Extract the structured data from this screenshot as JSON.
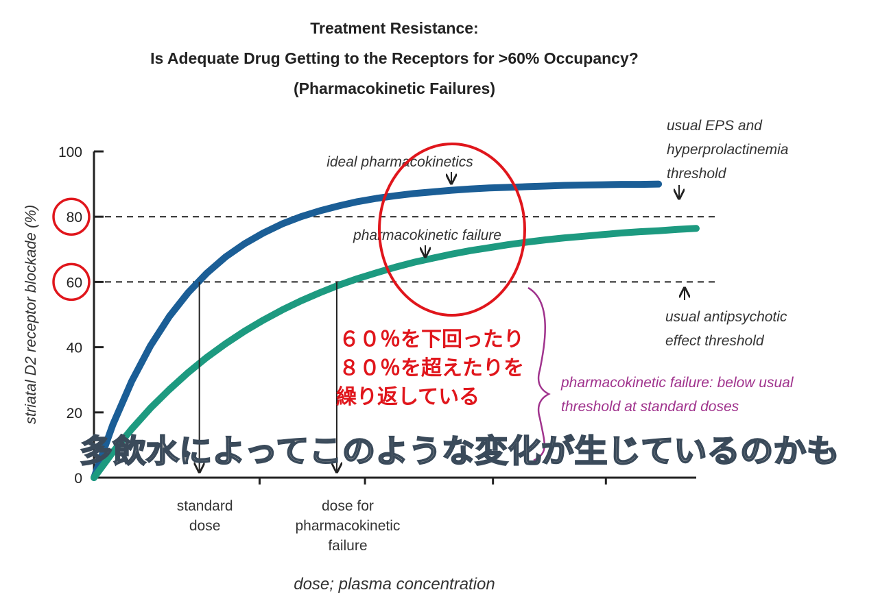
{
  "chart_data": {
    "type": "line",
    "title_lines": [
      "Treatment Resistance:",
      "Is Adequate Drug Getting to the Receptors for >60% Occupancy?",
      "(Pharmacokinetic Failures)"
    ],
    "xlabel": "dose; plasma concentration",
    "ylabel": "striatal D2 receptor blockade (%)",
    "ylim": [
      0,
      100
    ],
    "y_ticks": [
      "0",
      "20",
      "40",
      "60",
      "80",
      "100"
    ],
    "x_tick_labels": [
      {
        "name": "standard-dose",
        "lines": [
          "standard",
          "dose"
        ]
      },
      {
        "name": "dose-for-pk-failure",
        "lines": [
          "dose for",
          "pharmacokinetic",
          "failure"
        ]
      }
    ],
    "thresholds": [
      {
        "name": "eps-threshold",
        "y": 80,
        "label_lines": [
          "usual EPS and",
          "hyperprolactinemia",
          "threshold"
        ]
      },
      {
        "name": "antipsychotic-threshold",
        "y": 60,
        "label_lines": [
          "usual antipsychotic",
          "effect threshold"
        ]
      }
    ],
    "series": [
      {
        "name": "ideal pharmacokinetics",
        "color": "#1b5e96",
        "x": [
          0,
          0.5,
          1,
          1.5,
          2,
          2.5,
          3,
          3.5,
          4,
          4.5,
          5,
          5.5,
          6,
          6.5,
          7,
          7.5,
          8,
          8.5,
          9,
          9.5,
          10,
          10.5,
          11,
          11.5,
          12,
          12.5,
          13,
          13.5,
          14,
          14.5,
          15
        ],
        "values": [
          0,
          16.2,
          29.5,
          40.4,
          49.4,
          56.7,
          62.7,
          67.7,
          71.7,
          75.0,
          77.8,
          80.0,
          81.8,
          83.3,
          84.6,
          85.6,
          86.4,
          87.1,
          87.6,
          88.1,
          88.5,
          88.8,
          89.0,
          89.2,
          89.4,
          89.6,
          89.7,
          89.8,
          89.9,
          89.9,
          90.0
        ]
      },
      {
        "name": "pharmacokinetic failure",
        "color": "#1d9a80",
        "x": [
          0,
          0.5,
          1,
          1.5,
          2,
          2.5,
          3,
          3.5,
          4,
          4.5,
          5,
          5.5,
          6,
          6.5,
          7,
          7.5,
          8,
          8.5,
          9,
          9.5,
          10,
          10.5,
          11,
          11.5,
          12,
          12.5,
          13,
          13.5,
          14,
          14.5,
          15,
          15.5,
          16
        ],
        "values": [
          0,
          7.8,
          14.9,
          21.3,
          27.0,
          32.2,
          36.9,
          41.1,
          44.9,
          48.3,
          51.4,
          54.2,
          56.7,
          59.0,
          61.0,
          62.8,
          64.5,
          66.0,
          67.3,
          68.5,
          69.6,
          70.5,
          71.4,
          72.2,
          72.9,
          73.5,
          74.0,
          74.5,
          75.0,
          75.4,
          75.7,
          76.1,
          76.4
        ]
      }
    ],
    "x_markers": [
      {
        "name": "standard-dose-arrow",
        "x": 2.8,
        "y_from": 60
      },
      {
        "name": "pk-failure-dose-arrow",
        "x": 6.45,
        "y_from": 60
      }
    ],
    "annotations": {
      "pk_failure_note_lines": [
        "pharmacokinetic failure: below usual",
        "threshold at standard doses"
      ],
      "jp_red_lines": [
        "６０％を下回ったり",
        "８０％を超えたりを",
        "繰り返している"
      ],
      "jp_banner": "多飲水によってこのような変化が生じているのかも"
    },
    "colors": {
      "axis": "#222222",
      "red_annotation": "#e0161c",
      "purple_annotation": "#a0338d",
      "banner_fill": "#a9a9a9",
      "banner_stroke": "#3a4a5a"
    }
  }
}
